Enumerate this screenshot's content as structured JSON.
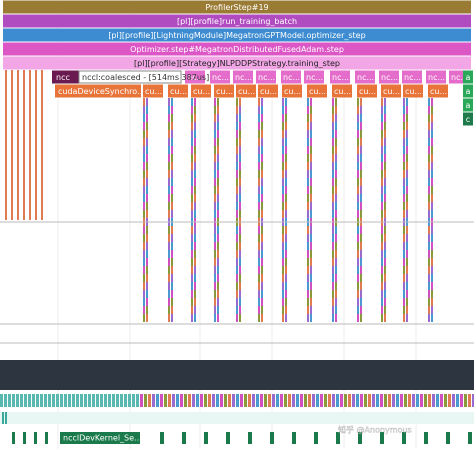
{
  "tracks": [
    {
      "label": "ProfilerStep#19",
      "color": "#9a7b34",
      "text_color": "#ffffff"
    },
    {
      "label": "[pl][profile]run_training_batch",
      "color": "#b04cc0",
      "text_color": "#ffffff"
    },
    {
      "label": "[pl][profile][LightningModule]MegatronGPTModel.optimizer_step",
      "color": "#3d8bd0",
      "text_color": "#ffffff"
    },
    {
      "label": "Optimizer.step#MegatronDistributedFusedAdam.step",
      "color": "#dd56c6",
      "text_color": "#ffffff"
    },
    {
      "label": "[pl][profile][Strategy]NLPDDPStrategy.training_step",
      "color": "#f2a6e6",
      "text_color": "#222222"
    }
  ],
  "nccl_first": "ncc",
  "tooltip": "nccl:coalesced - [514ms 387us]",
  "nccl_labels": [
    "nc...",
    "nc...",
    "nc...",
    "nc...",
    "nc...",
    "nc...",
    "nc...",
    "nc...",
    "nc...",
    "nc...",
    "nc...",
    "nc..."
  ],
  "cuda_first": "cudaDeviceSynchro...",
  "cuda_labels": [
    "cu...",
    "cu...",
    "cu...",
    "cu...",
    "cu...",
    "cu...",
    "cu...",
    "cu...",
    "cu...",
    "cu...",
    "cu...",
    "cu...",
    "cu..."
  ],
  "side_labels": [
    "a",
    "a",
    "a",
    "c"
  ],
  "kernel_label": "ncclDevKernel_Se...",
  "watermark": "知乎 @Anonymous"
}
